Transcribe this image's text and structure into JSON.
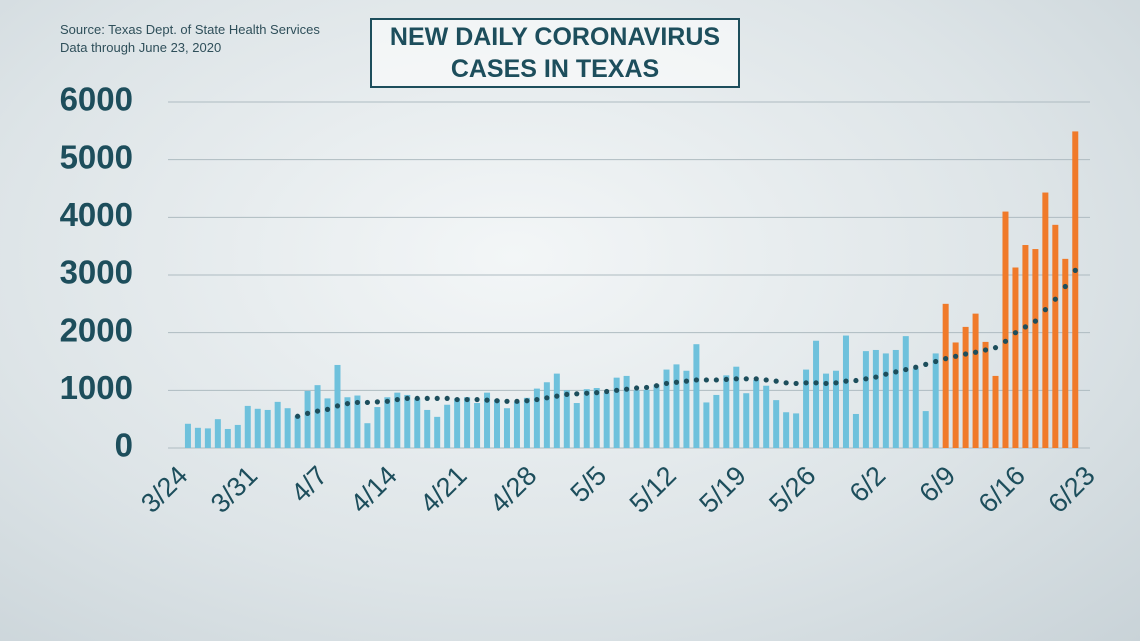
{
  "chart_data": {
    "type": "bar",
    "title": "NEW DAILY CORONAVIRUS CASES IN TEXAS",
    "source": "Source: Texas Dept. of State Health Services",
    "note": "Data through June 23, 2020",
    "categories": [
      "3/24",
      null,
      null,
      null,
      null,
      null,
      null,
      "3/31",
      null,
      null,
      null,
      null,
      null,
      null,
      "4/7",
      null,
      null,
      null,
      null,
      null,
      null,
      "4/14",
      null,
      null,
      null,
      null,
      null,
      null,
      "4/21",
      null,
      null,
      null,
      null,
      null,
      null,
      "4/28",
      null,
      null,
      null,
      null,
      null,
      null,
      "5/5",
      null,
      null,
      null,
      null,
      null,
      null,
      "5/12",
      null,
      null,
      null,
      null,
      null,
      null,
      "5/19",
      null,
      null,
      null,
      null,
      null,
      null,
      "5/26",
      null,
      null,
      null,
      null,
      null,
      null,
      "6/2",
      null,
      null,
      null,
      null,
      null,
      null,
      "6/9",
      null,
      null,
      null,
      null,
      null,
      null,
      "6/16",
      null,
      null,
      null,
      null,
      null,
      null,
      "6/23"
    ],
    "series": [
      {
        "color": "#6ec1dc",
        "values": [
          null,
          null,
          420,
          350,
          340,
          500,
          330,
          400,
          730,
          680,
          660,
          800,
          690,
          560,
          990,
          1090,
          860,
          1440,
          880,
          910,
          430,
          710,
          880,
          960,
          920,
          860,
          660,
          540,
          750,
          860,
          880,
          780,
          960,
          840,
          690,
          800,
          870,
          1030,
          1140,
          1290,
          1000,
          780,
          1020,
          1040,
          960,
          1220,
          1250,
          1000,
          1010,
          1100,
          1360,
          1450,
          1340,
          1800,
          790,
          920,
          1260,
          1410,
          950,
          1180,
          1080,
          830,
          620,
          600,
          1360,
          1860,
          1290,
          1340,
          1950,
          590,
          1680,
          1700,
          1640,
          1700,
          1940,
          1380,
          640,
          1640,
          null,
          null,
          null,
          null,
          null,
          null,
          null,
          null,
          null,
          null,
          null,
          null,
          null,
          null
        ]
      },
      {
        "color": "#f07a2a",
        "values": [
          null,
          null,
          null,
          null,
          null,
          null,
          null,
          null,
          null,
          null,
          null,
          null,
          null,
          null,
          null,
          null,
          null,
          null,
          null,
          null,
          null,
          null,
          null,
          null,
          null,
          null,
          null,
          null,
          null,
          null,
          null,
          null,
          null,
          null,
          null,
          null,
          null,
          null,
          null,
          null,
          null,
          null,
          null,
          null,
          null,
          null,
          null,
          null,
          null,
          null,
          null,
          null,
          null,
          null,
          null,
          null,
          null,
          null,
          null,
          null,
          null,
          null,
          null,
          null,
          null,
          null,
          null,
          null,
          null,
          null,
          null,
          null,
          null,
          null,
          null,
          null,
          null,
          null,
          2500,
          1830,
          2100,
          2330,
          1840,
          1250,
          4100,
          3130,
          3520,
          3450,
          4430,
          3870,
          3280,
          5490
        ]
      },
      {
        "type": "line",
        "color": "#1d4e5c",
        "values": [
          null,
          null,
          null,
          null,
          null,
          null,
          null,
          null,
          null,
          null,
          null,
          null,
          null,
          550,
          600,
          640,
          670,
          730,
          770,
          790,
          790,
          800,
          810,
          840,
          860,
          860,
          860,
          860,
          860,
          840,
          840,
          840,
          830,
          820,
          810,
          810,
          820,
          840,
          870,
          900,
          930,
          940,
          950,
          960,
          980,
          1000,
          1020,
          1040,
          1050,
          1080,
          1120,
          1140,
          1160,
          1180,
          1180,
          1180,
          1190,
          1200,
          1200,
          1200,
          1180,
          1160,
          1130,
          1120,
          1130,
          1130,
          1120,
          1130,
          1160,
          1170,
          1200,
          1230,
          1280,
          1320,
          1360,
          1400,
          1450,
          1500,
          1550,
          1590,
          1630,
          1660,
          1700,
          1740,
          1850,
          2000,
          2100,
          2200,
          2400,
          2580,
          2800,
          3080
        ]
      }
    ],
    "ylim": [
      0,
      6000
    ],
    "yticks": [
      0,
      1000,
      2000,
      3000,
      4000,
      5000,
      6000
    ],
    "grid": true
  }
}
